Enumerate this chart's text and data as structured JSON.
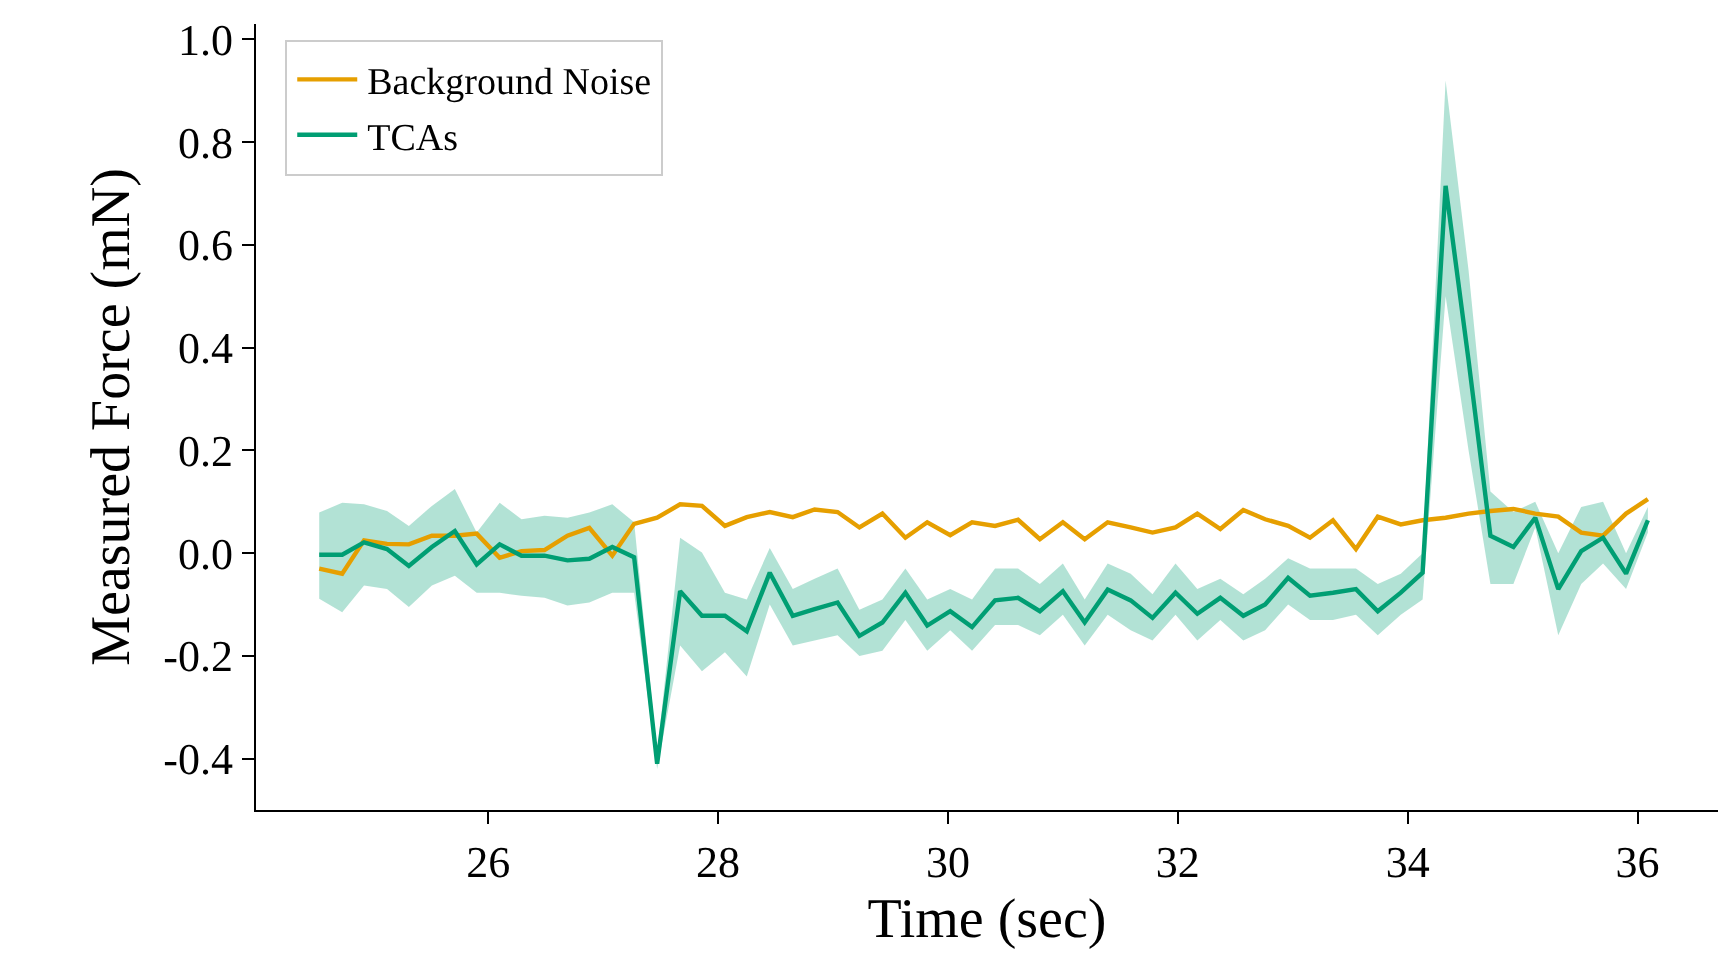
{
  "chart_data": {
    "type": "line",
    "xlabel": "Time (sec)",
    "ylabel": "Measured Force (mN)",
    "x": [
      24.53,
      24.73,
      24.92,
      25.12,
      25.31,
      25.51,
      25.71,
      25.9,
      26.1,
      26.29,
      26.49,
      26.69,
      26.88,
      27.08,
      27.27,
      27.47,
      27.67,
      27.86,
      28.06,
      28.25,
      28.45,
      28.65,
      28.84,
      29.04,
      29.23,
      29.43,
      29.63,
      29.82,
      30.02,
      30.21,
      30.41,
      30.61,
      30.8,
      31.0,
      31.19,
      31.39,
      31.59,
      31.78,
      31.98,
      32.17,
      32.37,
      32.57,
      32.76,
      32.96,
      33.15,
      33.35,
      33.55,
      33.74,
      33.94,
      34.13,
      34.33,
      34.53,
      34.72,
      34.92,
      35.11,
      35.31,
      35.51,
      35.7,
      35.9,
      36.09
    ],
    "series": [
      {
        "name": "Background Noise",
        "color": "#e69f00",
        "values": [
          -0.03,
          -0.04,
          0.025,
          0.018,
          0.017,
          0.034,
          0.034,
          0.038,
          -0.009,
          0.004,
          0.006,
          0.034,
          0.049,
          -0.005,
          0.057,
          0.069,
          0.095,
          0.092,
          0.053,
          0.07,
          0.08,
          0.07,
          0.085,
          0.08,
          0.05,
          0.077,
          0.03,
          0.06,
          0.035,
          0.06,
          0.053,
          0.065,
          0.027,
          0.06,
          0.027,
          0.06,
          0.05,
          0.04,
          0.05,
          0.077,
          0.047,
          0.084,
          0.066,
          0.053,
          0.03,
          0.064,
          0.008,
          0.071,
          0.056,
          0.064,
          0.069,
          0.077,
          0.082,
          0.086,
          0.077,
          0.071,
          0.04,
          0.034,
          0.077,
          0.105
        ]
      },
      {
        "name": "TCAs",
        "color": "#009e73",
        "values": [
          -0.003,
          -0.003,
          0.021,
          0.008,
          -0.025,
          0.012,
          0.043,
          -0.022,
          0.017,
          -0.005,
          -0.005,
          -0.014,
          -0.011,
          0.012,
          -0.008,
          -0.41,
          -0.074,
          -0.122,
          -0.122,
          -0.152,
          -0.038,
          -0.122,
          -0.109,
          -0.096,
          -0.161,
          -0.135,
          -0.077,
          -0.141,
          -0.113,
          -0.144,
          -0.092,
          -0.087,
          -0.113,
          -0.074,
          -0.135,
          -0.071,
          -0.092,
          -0.126,
          -0.077,
          -0.118,
          -0.087,
          -0.122,
          -0.1,
          -0.048,
          -0.083,
          -0.077,
          -0.07,
          -0.113,
          -0.077,
          -0.038,
          0.715,
          0.375,
          0.034,
          0.012,
          0.069,
          -0.07,
          0.004,
          0.03,
          -0.04,
          0.064
        ],
        "upper": [
          0.079,
          0.098,
          0.095,
          0.082,
          0.053,
          0.092,
          0.125,
          0.04,
          0.098,
          0.066,
          0.073,
          0.069,
          0.079,
          0.095,
          0.06,
          -0.39,
          0.03,
          0.001,
          -0.077,
          -0.09,
          0.01,
          -0.07,
          -0.05,
          -0.03,
          -0.11,
          -0.09,
          -0.03,
          -0.09,
          -0.07,
          -0.09,
          -0.03,
          -0.03,
          -0.06,
          -0.02,
          -0.09,
          -0.02,
          -0.04,
          -0.08,
          -0.02,
          -0.07,
          -0.05,
          -0.08,
          -0.05,
          -0.01,
          -0.03,
          -0.03,
          -0.03,
          -0.06,
          -0.04,
          0.0,
          0.92,
          0.55,
          0.12,
          0.08,
          0.1,
          0.0,
          0.09,
          0.1,
          0.0,
          0.09
        ],
        "lower": [
          -0.089,
          -0.115,
          -0.063,
          -0.07,
          -0.105,
          -0.063,
          -0.044,
          -0.077,
          -0.077,
          -0.083,
          -0.087,
          -0.102,
          -0.096,
          -0.077,
          -0.077,
          -0.42,
          -0.18,
          -0.23,
          -0.193,
          -0.24,
          -0.1,
          -0.18,
          -0.17,
          -0.16,
          -0.2,
          -0.19,
          -0.13,
          -0.19,
          -0.15,
          -0.19,
          -0.14,
          -0.14,
          -0.16,
          -0.12,
          -0.18,
          -0.12,
          -0.15,
          -0.17,
          -0.12,
          -0.17,
          -0.13,
          -0.17,
          -0.15,
          -0.1,
          -0.13,
          -0.13,
          -0.12,
          -0.16,
          -0.12,
          -0.09,
          0.5,
          0.2,
          -0.06,
          -0.06,
          0.05,
          -0.16,
          -0.06,
          -0.02,
          -0.07,
          0.04
        ]
      }
    ],
    "xlim": [
      23.98,
      36.7
    ],
    "xticks": [
      26,
      28,
      30,
      32,
      34,
      36
    ],
    "ylim": [
      -0.5,
      1.03
    ],
    "yticks": [
      {
        "value": -0.4,
        "label": "-0.4"
      },
      {
        "value": -0.2,
        "label": "-0.2"
      },
      {
        "value": 0,
        "label": "0.0"
      },
      {
        "value": 0.2,
        "label": "0.2"
      },
      {
        "value": 0.4,
        "label": "0.4"
      },
      {
        "value": 0.6,
        "label": "0.6"
      },
      {
        "value": 0.8,
        "label": "0.8"
      },
      {
        "value": 1.0,
        "label": "1.0"
      }
    ],
    "grid": false,
    "legend": "top left",
    "marker": "none",
    "line_style": "solid"
  }
}
